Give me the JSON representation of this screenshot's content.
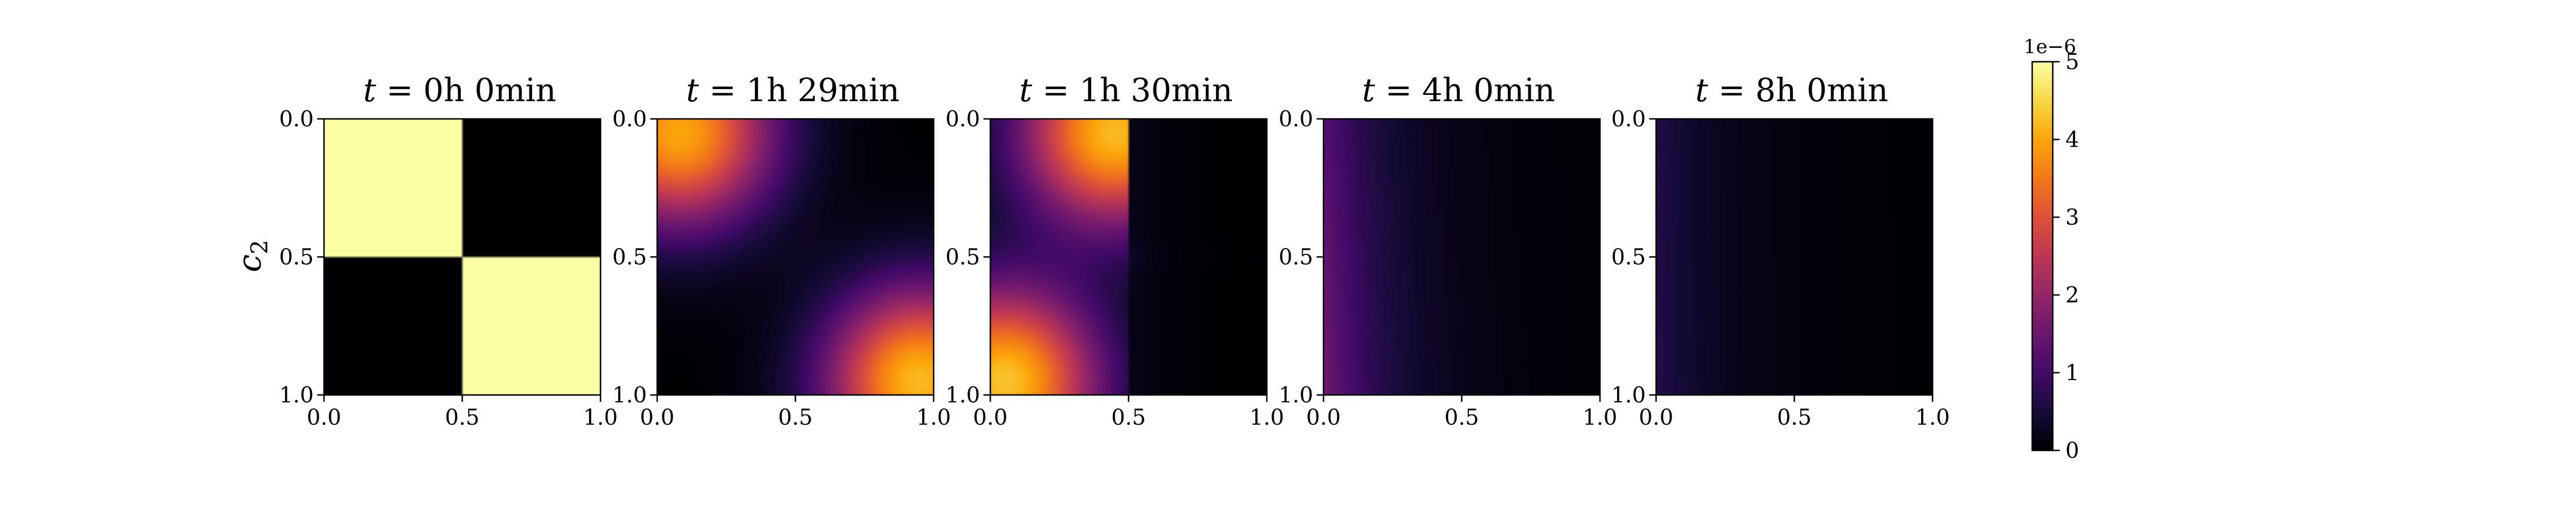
{
  "chart_data": {
    "type": "heatmap",
    "figure_layout": "five panels in a row with a shared colorbar on the right",
    "panels": [
      {
        "title_var": "t",
        "title_eq": " = ",
        "title_value": "0h 0min",
        "ylabel": "c",
        "ylabel_sub": "2",
        "xlim": [
          0,
          1
        ],
        "ylim": [
          1,
          0
        ],
        "xticks": [
          "0.0",
          "0.5",
          "1.0"
        ],
        "yticks": [
          "0.0",
          "0.5",
          "1.0"
        ],
        "field": "checkerboard",
        "description": "Top-left and bottom-right quadrants at max 5e-6, other quadrants 0"
      },
      {
        "title_var": "t",
        "title_eq": " = ",
        "title_value": "1h 29min",
        "xlim": [
          0,
          1
        ],
        "ylim": [
          1,
          0
        ],
        "xticks": [
          "0.0",
          "0.5",
          "1.0"
        ],
        "yticks": [
          "0.0",
          "0.5",
          "1.0"
        ],
        "field": "diffused_checkerboard",
        "peaks": [
          {
            "x": 0.08,
            "y": 0.05,
            "value": 4.0
          },
          {
            "x": 0.95,
            "y": 0.95,
            "value": 4.2
          }
        ]
      },
      {
        "title_var": "t",
        "title_eq": " = ",
        "title_value": "1h 30min",
        "xlim": [
          0,
          1
        ],
        "ylim": [
          1,
          0
        ],
        "xticks": [
          "0.0",
          "0.5",
          "1.0"
        ],
        "yticks": [
          "0.0",
          "0.5",
          "1.0"
        ],
        "field": "split_left",
        "peaks": [
          {
            "x": 0.45,
            "y": 0.05,
            "value": 4.2
          },
          {
            "x": 0.05,
            "y": 0.95,
            "value": 4.3
          }
        ]
      },
      {
        "title_var": "t",
        "title_eq": " = ",
        "title_value": "4h 0min",
        "xlim": [
          0,
          1
        ],
        "ylim": [
          1,
          0
        ],
        "xticks": [
          "0.0",
          "0.5",
          "1.0"
        ],
        "yticks": [
          "0.0",
          "0.5",
          "1.0"
        ],
        "field": "x_gradient",
        "left_value_top": 1.25,
        "left_value_bottom": 1.6
      },
      {
        "title_var": "t",
        "title_eq": " = ",
        "title_value": "8h 0min",
        "xlim": [
          0,
          1
        ],
        "ylim": [
          1,
          0
        ],
        "xticks": [
          "0.0",
          "0.5",
          "1.0"
        ],
        "yticks": [
          "0.0",
          "0.5",
          "1.0"
        ],
        "field": "x_gradient",
        "left_value_top": 0.65,
        "left_value_bottom": 0.7
      }
    ],
    "colorbar": {
      "colormap": "inferno",
      "range": [
        0,
        5
      ],
      "ticks": [
        "0",
        "1",
        "2",
        "3",
        "4",
        "5"
      ],
      "scale_label": "1e−6"
    }
  }
}
